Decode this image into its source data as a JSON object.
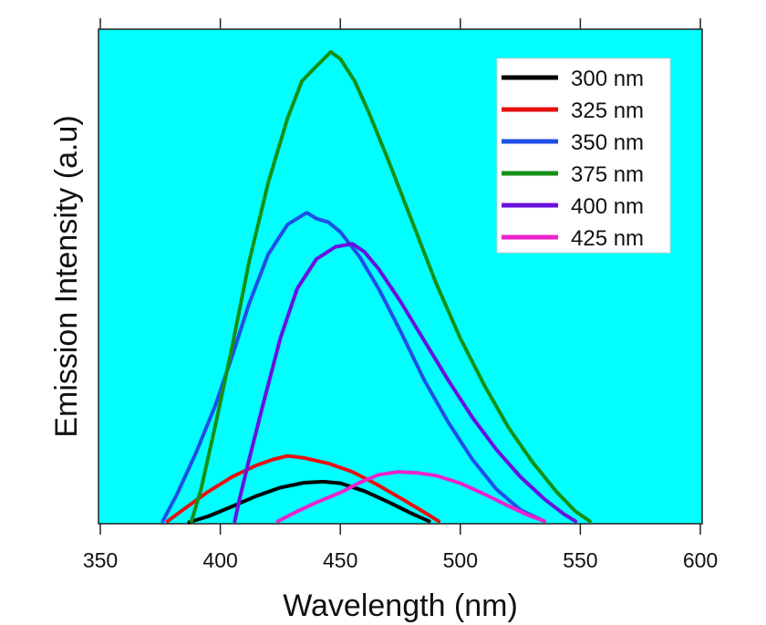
{
  "chart_data": {
    "type": "line",
    "title": "",
    "xlabel": "Wavelength (nm)",
    "ylabel": "Emission Intensity (a.u)",
    "xlim": [
      350,
      600
    ],
    "ylim": [
      0,
      100
    ],
    "xticks": [
      350,
      400,
      450,
      500,
      550,
      600
    ],
    "xtick_labels": [
      "350",
      "400",
      "450",
      "500",
      "550",
      "600"
    ],
    "yticks_visible": false,
    "grid": false,
    "background_color": "#00ffff",
    "legend": {
      "position": "top-right"
    },
    "series": [
      {
        "name": "300 nm",
        "color": "#000000",
        "x": [
          387,
          395,
          405,
          415,
          425,
          435,
          443,
          450,
          460,
          470,
          480,
          487
        ],
        "y": [
          0.3,
          1.5,
          3.5,
          5.6,
          7.3,
          8.3,
          8.5,
          8.2,
          6.6,
          4.4,
          2.0,
          0.5
        ]
      },
      {
        "name": "325 nm",
        "color": "#e81010",
        "x": [
          378,
          385,
          395,
          405,
          415,
          422,
          428,
          435,
          445,
          455,
          465,
          475,
          485,
          491
        ],
        "y": [
          0.5,
          3.0,
          6.5,
          9.5,
          11.8,
          13.0,
          13.7,
          13.3,
          12.2,
          10.5,
          8.0,
          5.2,
          2.3,
          0.5
        ]
      },
      {
        "name": "350 nm",
        "color": "#1f4fe8",
        "x": [
          376,
          382,
          390,
          398,
          405,
          412,
          420,
          428,
          436,
          440,
          445,
          450,
          458,
          466,
          475,
          485,
          495,
          505,
          515,
          525,
          535
        ],
        "y": [
          0.5,
          6.0,
          14.5,
          24.0,
          34.0,
          44.5,
          54.5,
          60.5,
          62.9,
          61.7,
          61.0,
          59.0,
          54.0,
          47.5,
          39.0,
          29.0,
          20.5,
          13.0,
          7.0,
          2.8,
          0.5
        ]
      },
      {
        "name": "375 nm",
        "color": "#159015",
        "x": [
          388,
          392,
          398,
          405,
          412,
          420,
          428,
          434,
          440,
          446,
          450,
          456,
          462,
          470,
          480,
          490,
          500,
          510,
          520,
          530,
          540,
          548,
          554
        ],
        "y": [
          0.5,
          7.0,
          20.0,
          36.0,
          53.0,
          69.0,
          82.0,
          89.5,
          92.5,
          95.4,
          94.0,
          89.5,
          83.0,
          73.5,
          61.0,
          48.5,
          37.5,
          28.0,
          19.5,
          12.5,
          6.5,
          2.5,
          0.5
        ]
      },
      {
        "name": "400 nm",
        "color": "#6a10e0",
        "x": [
          406,
          408,
          412,
          418,
          425,
          432,
          440,
          448,
          455,
          460,
          466,
          475,
          485,
          495,
          505,
          515,
          525,
          535,
          543,
          548
        ],
        "y": [
          0.5,
          5.0,
          13.0,
          24.5,
          37.5,
          47.5,
          53.5,
          56.0,
          56.6,
          55.0,
          51.5,
          45.0,
          37.0,
          29.0,
          21.5,
          15.0,
          9.5,
          5.0,
          2.0,
          0.5
        ]
      },
      {
        "name": "425 nm",
        "color": "#ee22cc",
        "x": [
          424,
          432,
          440,
          450,
          458,
          466,
          474,
          482,
          490,
          500,
          510,
          520,
          528,
          535
        ],
        "y": [
          0.5,
          2.5,
          4.3,
          6.3,
          8.3,
          9.9,
          10.5,
          10.3,
          9.7,
          8.2,
          6.0,
          3.6,
          1.8,
          0.5
        ]
      }
    ]
  }
}
